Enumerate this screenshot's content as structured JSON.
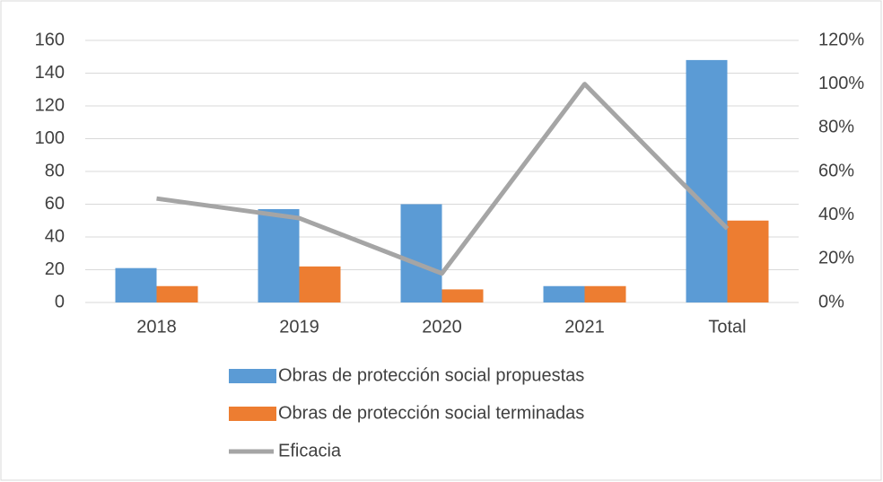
{
  "chart_data": {
    "type": "bar",
    "categories": [
      "2018",
      "2019",
      "2020",
      "2021",
      "Total"
    ],
    "series": [
      {
        "name": "Obras de protección social propuestas",
        "color": "#5b9bd5",
        "values": [
          21,
          57,
          60,
          10,
          148
        ]
      },
      {
        "name": "Obras de protección social terminadas",
        "color": "#ed7d31",
        "values": [
          10,
          22,
          8,
          10,
          50
        ]
      },
      {
        "name": "Eficacia",
        "color": "#a5a5a5",
        "type": "line",
        "axis": "y2",
        "values": [
          47.6,
          38.6,
          13.3,
          100,
          33.8
        ]
      }
    ],
    "ylim": [
      0,
      160
    ],
    "yticks": [
      0,
      20,
      40,
      60,
      80,
      100,
      120,
      140,
      160
    ],
    "y2lim": [
      0,
      120
    ],
    "y2ticks": [
      {
        "value": 0,
        "label": "0%"
      },
      {
        "value": 20,
        "label": "20%"
      },
      {
        "value": 40,
        "label": "40%"
      },
      {
        "value": 60,
        "label": "60%"
      },
      {
        "value": 80,
        "label": "80%"
      },
      {
        "value": 100,
        "label": "100%"
      },
      {
        "value": 120,
        "label": "120%"
      }
    ],
    "grid": true,
    "legend": "bottom"
  }
}
